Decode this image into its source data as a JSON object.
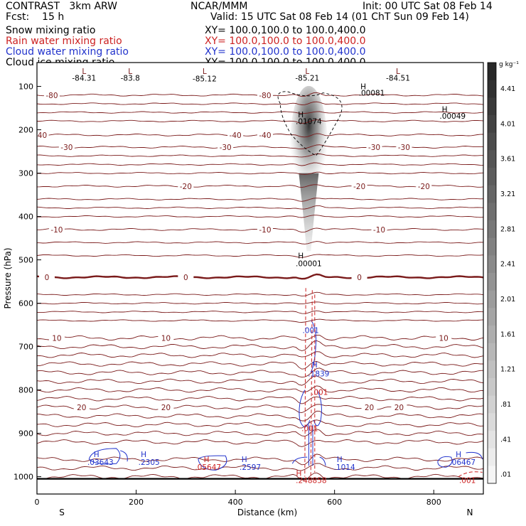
{
  "header": {
    "left_title": "CONTRAST   3km ARW",
    "center_title": "NCAR/MMM",
    "init": "Init: 00 UTC Sat 08 Feb 14",
    "fcst": "Fcst:    15 h",
    "valid": "Valid: 15 UTC Sat 08 Feb 14 (01 ChT Sun 09 Feb 14)",
    "fields": [
      {
        "label": "Snow mixing ratio",
        "xy": "XY= 100.0,100.0 to 100.0,400.0",
        "color": "#000000"
      },
      {
        "label": "Rain water mixing ratio",
        "xy": "XY= 100.0,100.0 to 100.0,400.0",
        "color": "#cc2222"
      },
      {
        "label": "Cloud water mixing ratio",
        "xy": "XY= 100.0,100.0 to 100.0,400.0",
        "color": "#2233cc"
      },
      {
        "label": "Cloud ice mixing ratio",
        "xy": "XY= 100.0,100.0 to 100.0,400.0",
        "color": "#000000"
      }
    ]
  },
  "chart_data": {
    "type": "cross-section",
    "xlabel": "Distance (km)",
    "ylabel": "Pressure (hPa)",
    "xlim": [
      0,
      900
    ],
    "ylim": [
      1040,
      45
    ],
    "x_ticks": [
      0,
      200,
      400,
      600,
      800
    ],
    "y_ticks": [
      100,
      200,
      300,
      400,
      500,
      600,
      700,
      800,
      900,
      1000
    ],
    "x_end_labels": {
      "left": "S",
      "right": "N"
    },
    "colorbar": {
      "unit": "g kg⁻¹",
      "ticks": [
        "4.41",
        "4.01",
        "3.61",
        "3.21",
        "2.81",
        "2.41",
        "2.01",
        "1.61",
        "1.21",
        ".81",
        ".41",
        ".01"
      ]
    },
    "temperature_contours": [
      {
        "label": "-80",
        "pressure": 120,
        "label_positions": [
          30,
          460
        ]
      },
      {
        "label": "-40",
        "pressure": 212,
        "label_positions": [
          -10,
          400,
          460
        ]
      },
      {
        "label": "-30",
        "pressure": 240,
        "label_positions": [
          60,
          380,
          680,
          740
        ]
      },
      {
        "label": "-20",
        "pressure": 330,
        "label_positions": [
          300,
          650,
          780
        ]
      },
      {
        "label": "-10",
        "pressure": 430,
        "label_positions": [
          40,
          460,
          690
        ]
      },
      {
        "label": "0",
        "pressure": 540,
        "label_positions": [
          20,
          300,
          650
        ]
      },
      {
        "label": "10",
        "pressure": 680,
        "label_positions": [
          40,
          260,
          820
        ]
      },
      {
        "label": "20",
        "pressure": 840,
        "label_positions": [
          90,
          260,
          670,
          730
        ]
      }
    ],
    "plain_isotherms_hpa": [
      140,
      160,
      180,
      260,
      280,
      300,
      360,
      380,
      400,
      460,
      490,
      580,
      600,
      620,
      640,
      700,
      720,
      740,
      760,
      780,
      800,
      820,
      860,
      880,
      900,
      920,
      960,
      980,
      1000
    ],
    "extrema": [
      {
        "text": "L",
        "x": 95,
        "p": 65
      },
      {
        "text": "-84.31",
        "x": 95,
        "p": 80
      },
      {
        "text": "L",
        "x": 188,
        "p": 65
      },
      {
        "text": "-83.8",
        "x": 188,
        "p": 80
      },
      {
        "text": "L",
        "x": 338,
        "p": 65
      },
      {
        "text": "-85.12",
        "x": 338,
        "p": 82
      },
      {
        "text": "L",
        "x": 545,
        "p": 65
      },
      {
        "text": "-85.21",
        "x": 545,
        "p": 80
      },
      {
        "text": "L",
        "x": 728,
        "p": 65
      },
      {
        "text": "-84.51",
        "x": 728,
        "p": 80
      },
      {
        "text": "H",
        "x": 658,
        "p": 100
      },
      {
        "text": ".00081",
        "x": 675,
        "p": 115
      },
      {
        "text": "H",
        "x": 822,
        "p": 152
      },
      {
        "text": ".00049",
        "x": 838,
        "p": 168
      },
      {
        "text": "H",
        "x": 532,
        "p": 165
      },
      {
        "text": ".01074",
        "x": 548,
        "p": 180
      },
      {
        "text": "H",
        "x": 532,
        "p": 490
      },
      {
        "text": ".00001",
        "x": 548,
        "p": 508
      }
    ],
    "cloud_water_labels": [
      {
        "text": ".001",
        "x": 552,
        "p": 662
      },
      {
        "text": "H",
        "x": 560,
        "p": 742
      },
      {
        "text": ".1839",
        "x": 568,
        "p": 762
      },
      {
        "text": "H",
        "x": 120,
        "p": 948
      },
      {
        "text": ".03643",
        "x": 128,
        "p": 966
      },
      {
        "text": "H",
        "x": 215,
        "p": 948
      },
      {
        "text": ".2305",
        "x": 226,
        "p": 966
      },
      {
        "text": "H",
        "x": 418,
        "p": 960
      },
      {
        "text": ".2597",
        "x": 430,
        "p": 978
      },
      {
        "text": "H",
        "x": 610,
        "p": 960
      },
      {
        "text": ".1014",
        "x": 620,
        "p": 978
      },
      {
        "text": "H",
        "x": 850,
        "p": 948
      },
      {
        "text": ".06467",
        "x": 858,
        "p": 966
      }
    ],
    "rain_labels": [
      {
        "text": ".001",
        "x": 570,
        "p": 805
      },
      {
        "text": ".001",
        "x": 550,
        "p": 888
      },
      {
        "text": "H",
        "x": 342,
        "p": 960
      },
      {
        "text": ".05647",
        "x": 345,
        "p": 978
      },
      {
        "text": "H",
        "x": 528,
        "p": 992
      },
      {
        "text": ".248858",
        "x": 553,
        "p": 1008
      },
      {
        "text": ".001",
        "x": 868,
        "p": 1008
      }
    ],
    "surface_hpa": 1005
  }
}
